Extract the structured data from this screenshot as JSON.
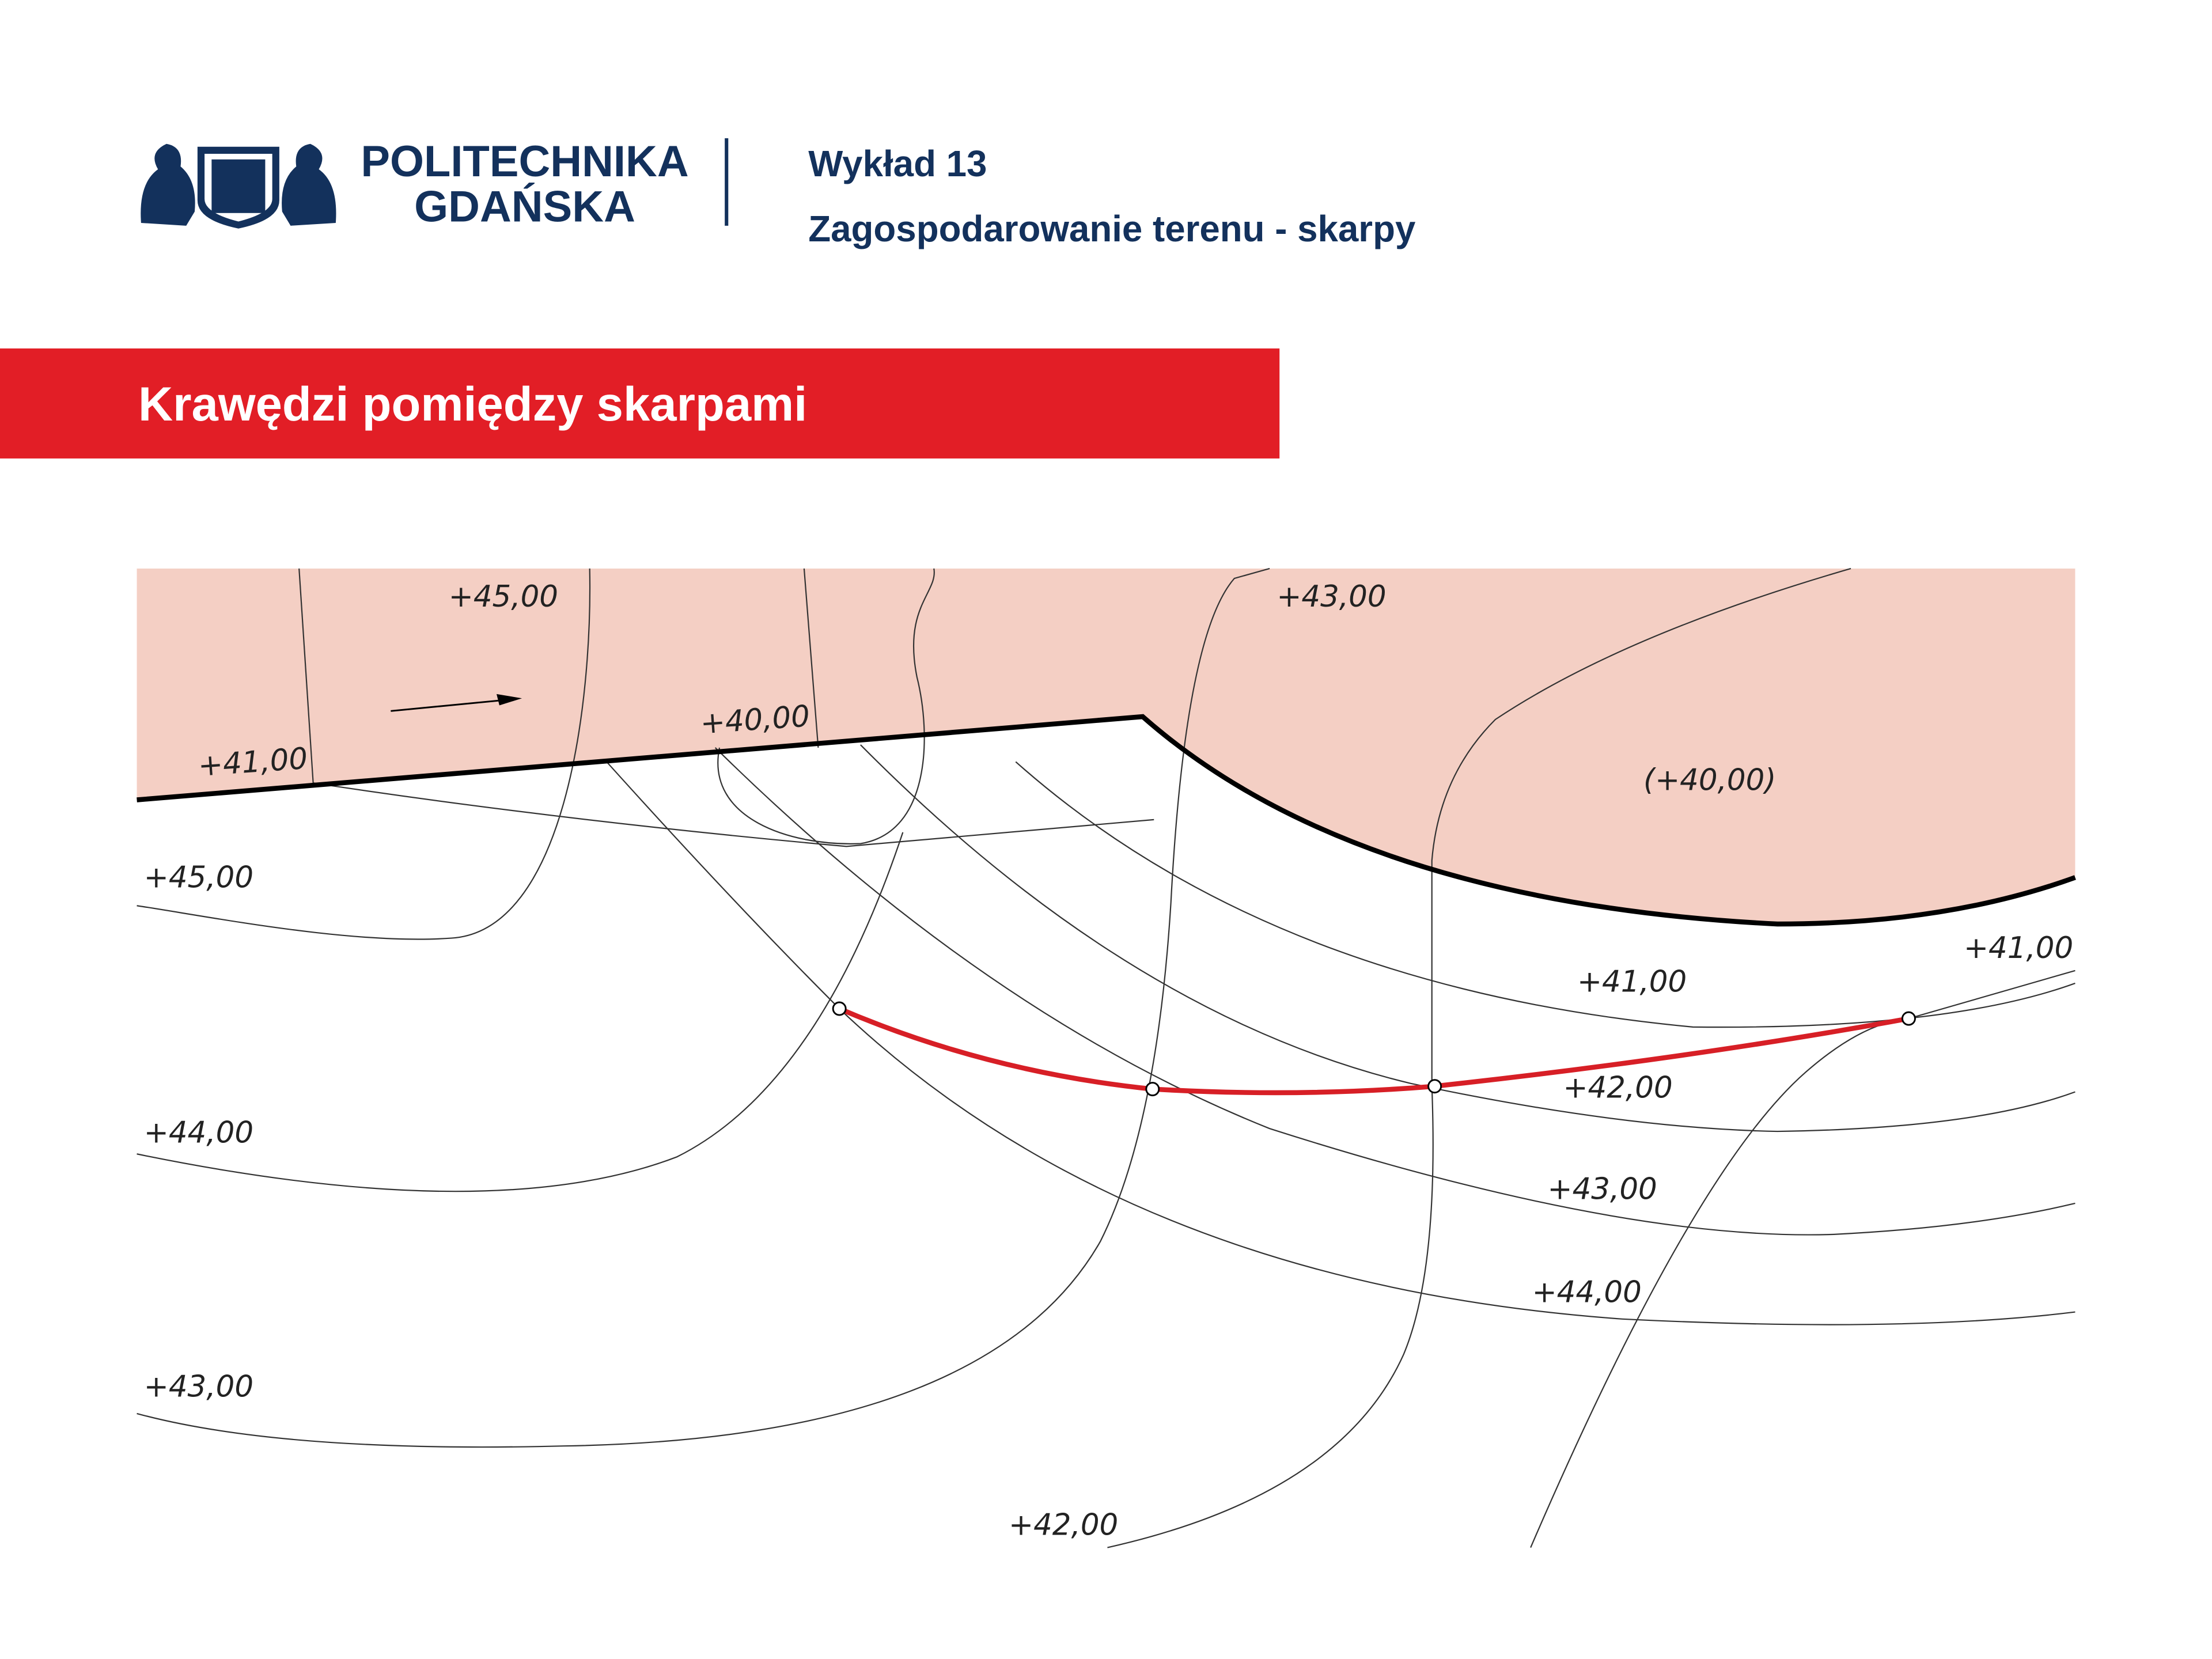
{
  "header": {
    "university": [
      "POLITECHNIKA",
      "GDAŃSKA"
    ],
    "lecture": "Wykład 13",
    "topic": "Zagospodarowanie terenu - skarpy"
  },
  "section_title": "Krawędzi pomiędzy skarpami",
  "diagram": {
    "labels": [
      "+45,00",
      "+43,00",
      "+40,00",
      "+41,00",
      "(+40,00)",
      "+45,00",
      "+44,00",
      "+43,00",
      "+42,00",
      "+41,00",
      "+41,00",
      "+42,00",
      "+43,00",
      "+44,00"
    ]
  }
}
